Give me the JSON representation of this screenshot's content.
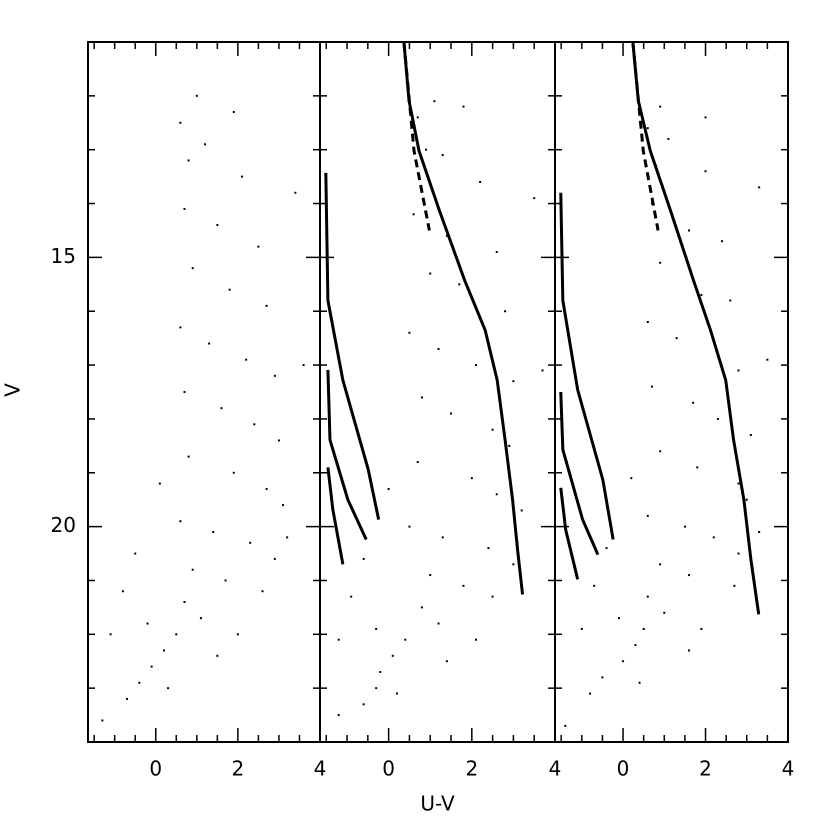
{
  "chart_data": [
    {
      "type": "scatter",
      "ylabel": "V",
      "color": "#000000",
      "xlim": [
        -1.65,
        4
      ],
      "ylim": [
        24,
        11
      ],
      "xticks": [
        0,
        2,
        4
      ],
      "xticks_minor": [
        -1.5,
        -1,
        -0.5,
        0.5,
        1,
        1.5,
        2.5,
        3,
        3.5
      ],
      "yticks": [
        15,
        20
      ],
      "yticks_minor": [
        12,
        13,
        14,
        16,
        17,
        18,
        19,
        21,
        22,
        23
      ],
      "ytick_labels": true,
      "x": [
        0.6,
        0.8,
        1.2,
        2.1,
        0.7,
        1.5,
        2.5,
        0.9,
        1.8,
        2.7,
        0.6,
        1.3,
        2.2,
        2.9,
        0.7,
        1.6,
        2.4,
        3.0,
        0.8,
        1.9,
        2.7,
        3.1,
        0.6,
        1.4,
        2.3,
        2.9,
        3.2,
        0.9,
        1.7,
        2.6,
        0.7,
        1.1,
        0.5,
        0.2,
        -0.1,
        -0.4,
        -0.7,
        0.3,
        -0.2,
        -0.8,
        -1.1,
        -0.5,
        0.1,
        1.0,
        1.9,
        3.4,
        3.6,
        -1.3,
        2.0,
        1.5
      ],
      "y": [
        12.5,
        13.2,
        12.9,
        13.5,
        14.1,
        14.4,
        14.8,
        15.2,
        15.6,
        15.9,
        16.3,
        16.6,
        16.9,
        17.2,
        17.5,
        17.8,
        18.1,
        18.4,
        18.7,
        19.0,
        19.3,
        19.6,
        19.9,
        20.1,
        20.3,
        20.6,
        20.2,
        20.8,
        21.0,
        21.2,
        21.4,
        21.7,
        22.0,
        22.3,
        22.6,
        22.9,
        23.2,
        23.0,
        21.8,
        21.2,
        22.0,
        20.5,
        19.2,
        12.0,
        12.3,
        13.8,
        17.0,
        23.6,
        22.0,
        22.4
      ],
      "lines": []
    },
    {
      "type": "scatter",
      "xlabel": "U-V",
      "color": "#000000",
      "xlim": [
        -1.65,
        4
      ],
      "ylim": [
        24,
        11
      ],
      "xticks": [
        0,
        2,
        4
      ],
      "xticks_minor": [
        -1.5,
        -1,
        -0.5,
        0.5,
        1,
        1.5,
        2.5,
        3,
        3.5
      ],
      "yticks": [
        15,
        20
      ],
      "yticks_minor": [
        12,
        13,
        14,
        16,
        17,
        18,
        19,
        21,
        22,
        23
      ],
      "ytick_labels": false,
      "x": [
        0.7,
        0.9,
        1.3,
        2.2,
        0.6,
        1.4,
        2.6,
        1.0,
        1.7,
        2.8,
        0.5,
        1.2,
        2.1,
        3.0,
        0.8,
        1.5,
        2.5,
        2.9,
        0.7,
        2.0,
        2.6,
        3.2,
        0.5,
        1.3,
        2.4,
        3.0,
        3.1,
        1.0,
        1.8,
        2.5,
        0.8,
        1.2,
        0.4,
        0.1,
        -0.2,
        -0.3,
        -0.6,
        0.2,
        -0.3,
        -0.9,
        -1.2,
        -0.6,
        0.0,
        1.1,
        1.8,
        3.5,
        3.7,
        -1.2,
        2.1,
        1.4
      ],
      "y": [
        12.4,
        13.0,
        13.1,
        13.6,
        14.2,
        14.6,
        14.9,
        15.3,
        15.5,
        16.0,
        16.4,
        16.7,
        17.0,
        17.3,
        17.6,
        17.9,
        18.2,
        18.5,
        18.8,
        19.1,
        19.4,
        19.7,
        20.0,
        20.2,
        20.4,
        20.7,
        20.3,
        20.9,
        21.1,
        21.3,
        21.5,
        21.8,
        22.1,
        22.4,
        22.7,
        23.0,
        23.3,
        23.1,
        21.9,
        21.3,
        22.1,
        20.6,
        19.3,
        12.1,
        12.2,
        13.9,
        17.1,
        23.5,
        22.1,
        22.5
      ],
      "lines": [
        {
          "style": "solid",
          "x": [
            0.37,
            0.49,
            0.73,
            1.22,
            1.83,
            2.32,
            2.61,
            2.8,
            2.98,
            3.1,
            3.22
          ],
          "y": [
            11.02,
            12.09,
            13.02,
            14.13,
            15.43,
            16.35,
            17.28,
            18.39,
            19.5,
            20.43,
            21.26
          ]
        },
        {
          "style": "dashed",
          "x": [
            0.37,
            0.61,
            0.98
          ],
          "y": [
            11.02,
            13.02,
            14.5
          ]
        },
        {
          "style": "solid",
          "x": [
            -1.51,
            -1.46,
            -1.1,
            -0.49,
            -0.24
          ],
          "y": [
            13.43,
            15.8,
            17.28,
            18.94,
            19.87
          ]
        },
        {
          "style": "solid",
          "x": [
            -1.46,
            -1.41,
            -0.98,
            -0.54
          ],
          "y": [
            17.09,
            18.39,
            19.5,
            20.24
          ]
        },
        {
          "style": "solid",
          "x": [
            -1.46,
            -1.34,
            -1.1
          ],
          "y": [
            18.9,
            19.69,
            20.7
          ]
        }
      ]
    },
    {
      "type": "scatter",
      "color": "#000000",
      "xlim": [
        -1.65,
        4
      ],
      "ylim": [
        24,
        11
      ],
      "xticks": [
        0,
        2,
        4
      ],
      "xticks_minor": [
        -1.5,
        -1,
        -0.5,
        0.5,
        1,
        1.5,
        2.5,
        3,
        3.5
      ],
      "yticks": [
        15,
        20
      ],
      "yticks_minor": [
        12,
        13,
        14,
        16,
        17,
        18,
        19,
        21,
        22,
        23
      ],
      "ytick_labels": false,
      "x": [
        0.6,
        0.8,
        1.1,
        2.0,
        0.7,
        1.6,
        2.4,
        0.9,
        1.9,
        2.6,
        0.6,
        1.3,
        2.3,
        2.8,
        0.7,
        1.7,
        2.3,
        3.1,
        0.9,
        1.8,
        2.8,
        3.0,
        0.6,
        1.5,
        2.2,
        2.8,
        3.3,
        0.9,
        1.6,
        2.7,
        0.6,
        1.0,
        0.5,
        0.3,
        0.0,
        -0.5,
        -0.8,
        0.4,
        -0.1,
        -0.7,
        -1.0,
        -0.4,
        0.2,
        0.9,
        2.0,
        3.3,
        3.5,
        -1.4,
        1.9,
        1.6
      ],
      "y": [
        12.6,
        13.3,
        12.8,
        13.4,
        14.0,
        14.5,
        14.7,
        15.1,
        15.7,
        15.8,
        16.2,
        16.5,
        16.8,
        17.1,
        17.4,
        17.7,
        18.0,
        18.3,
        18.6,
        18.9,
        19.2,
        19.5,
        19.8,
        20.0,
        20.2,
        20.5,
        20.1,
        20.7,
        20.9,
        21.1,
        21.3,
        21.6,
        21.9,
        22.2,
        22.5,
        22.8,
        23.1,
        22.9,
        21.7,
        21.1,
        21.9,
        20.4,
        19.1,
        12.2,
        12.4,
        13.7,
        16.9,
        23.7,
        21.9,
        22.3
      ],
      "lines": [
        {
          "style": "solid",
          "x": [
            0.24,
            0.37,
            0.66,
            1.15,
            1.71,
            2.12,
            2.49,
            2.68,
            2.93,
            3.1,
            3.29
          ],
          "y": [
            11.02,
            12.09,
            13.02,
            14.13,
            15.43,
            16.35,
            17.28,
            18.39,
            19.5,
            20.61,
            21.63
          ]
        },
        {
          "style": "dashed",
          "x": [
            0.24,
            0.49,
            0.85
          ],
          "y": [
            11.02,
            13.02,
            14.5
          ]
        },
        {
          "style": "solid",
          "x": [
            -1.51,
            -1.46,
            -1.1,
            -0.49,
            -0.24
          ],
          "y": [
            13.8,
            15.8,
            17.46,
            19.13,
            20.24
          ]
        },
        {
          "style": "solid",
          "x": [
            -1.51,
            -1.46,
            -0.98,
            -0.61
          ],
          "y": [
            17.5,
            18.57,
            19.87,
            20.52
          ]
        },
        {
          "style": "solid",
          "x": [
            -1.51,
            -1.39,
            -1.1
          ],
          "y": [
            19.28,
            20.06,
            20.98
          ]
        }
      ]
    }
  ]
}
